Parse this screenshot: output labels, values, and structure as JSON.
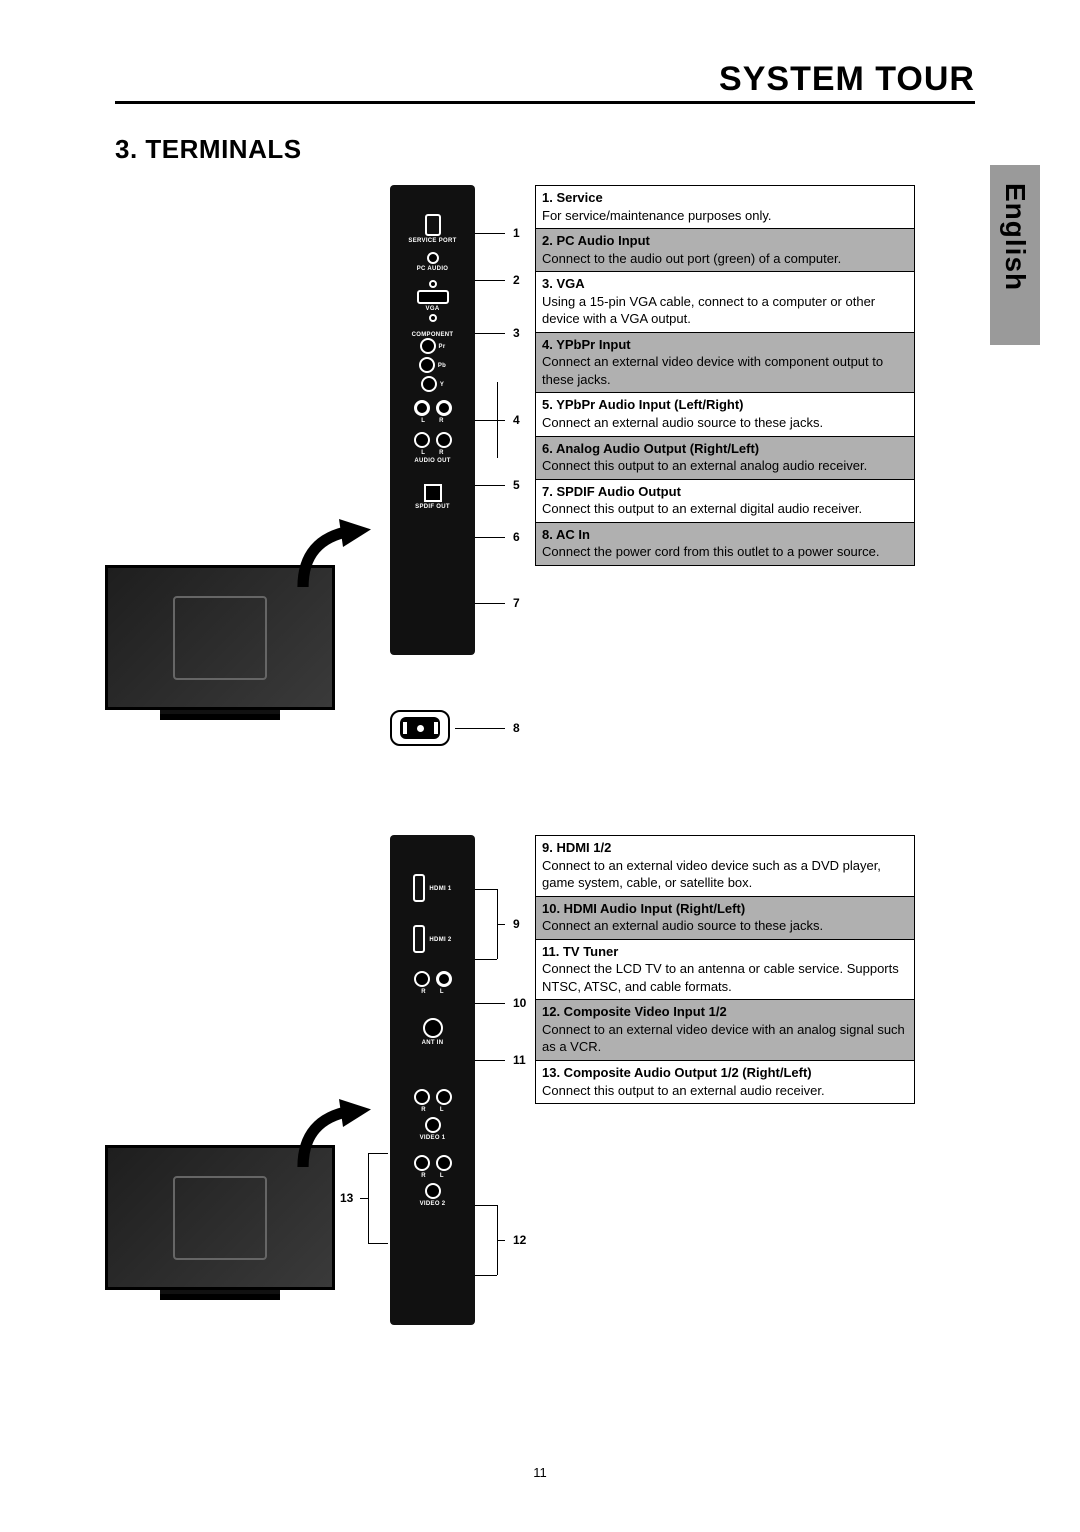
{
  "header": {
    "title": "SYSTEM TOUR"
  },
  "section_title": "3. TERMINALS",
  "lang_tab": "English",
  "page_number": "11",
  "panel1": {
    "callouts": [
      "1",
      "2",
      "3",
      "4",
      "5",
      "6",
      "7",
      "8"
    ],
    "labels": {
      "service": "SERVICE PORT",
      "pcaudio": "PC AUDIO",
      "vga": "VGA",
      "component": "COMPONENT",
      "pr": "Pr",
      "pb": "Pb",
      "y": "Y",
      "l": "L",
      "r": "R",
      "audioout": "AUDIO OUT",
      "spdif": "SPDIF OUT"
    }
  },
  "panel2": {
    "callouts": [
      "9",
      "10",
      "11",
      "12",
      "13"
    ],
    "labels": {
      "hdmi1": "HDMI 1",
      "hdmi2": "HDMI 2",
      "r": "R",
      "l": "L",
      "antin": "ANT IN",
      "video1": "VIDEO 1",
      "video2": "VIDEO 2"
    }
  },
  "table1": [
    {
      "shade": false,
      "title": "1. Service",
      "desc": "For service/maintenance purposes only."
    },
    {
      "shade": true,
      "title": "2. PC Audio Input",
      "desc": "Connect to the audio out port (green) of a computer."
    },
    {
      "shade": false,
      "title": "3. VGA",
      "desc": "Using a 15-pin VGA cable, connect to a computer or other device with a VGA output."
    },
    {
      "shade": true,
      "title": "4. YPbPr Input",
      "desc": "Connect an external video device with component output to these jacks."
    },
    {
      "shade": false,
      "title": "5. YPbPr Audio Input (Left/Right)",
      "desc": "Connect an external audio source to these jacks."
    },
    {
      "shade": true,
      "title": "6. Analog Audio Output (Right/Left)",
      "desc": "Connect this output to an external analog audio receiver."
    },
    {
      "shade": false,
      "title": "7. SPDIF Audio Output",
      "desc": "Connect this output to an external digital audio receiver."
    },
    {
      "shade": true,
      "title": "8. AC In",
      "desc": "Connect the power cord from this outlet to a power source."
    }
  ],
  "table2": [
    {
      "shade": false,
      "title": "9. HDMI 1/2",
      "desc": "Connect to an external video device such as a DVD player, game system, cable, or satellite box."
    },
    {
      "shade": true,
      "title": "10. HDMI Audio Input (Right/Left)",
      "desc": "Connect an external audio source to these jacks."
    },
    {
      "shade": false,
      "title": "11. TV Tuner",
      "desc": "Connect the LCD TV to an antenna or cable service. Supports NTSC, ATSC, and cable formats."
    },
    {
      "shade": true,
      "title": "12. Composite Video Input 1/2",
      "desc": "Connect to an external video device with an analog signal such as a VCR."
    },
    {
      "shade": false,
      "title": "13. Composite Audio Output 1/2 (Right/Left)",
      "desc": "Connect this output to an external audio receiver."
    }
  ],
  "colors": {
    "shade": "#b0b0b0",
    "panel": "#111111",
    "tab": "#9a9a9a"
  }
}
